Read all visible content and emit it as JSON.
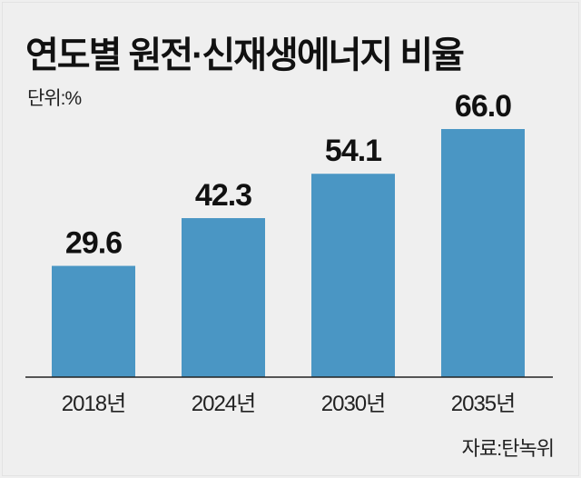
{
  "chart_data": {
    "type": "bar",
    "title": "연도별 원전·신재생에너지 비율",
    "unit_label": "단위:%",
    "categories": [
      "2018년",
      "2024년",
      "2030년",
      "2035년"
    ],
    "values": [
      29.6,
      42.3,
      54.1,
      66.0
    ],
    "value_labels": [
      "29.6",
      "42.3",
      "54.1",
      "66.0"
    ],
    "xlabel": "",
    "ylabel": "",
    "ylim": [
      0,
      66
    ],
    "grid": false,
    "source": "자료:탄녹위",
    "bar_color": "#4a96c4"
  }
}
